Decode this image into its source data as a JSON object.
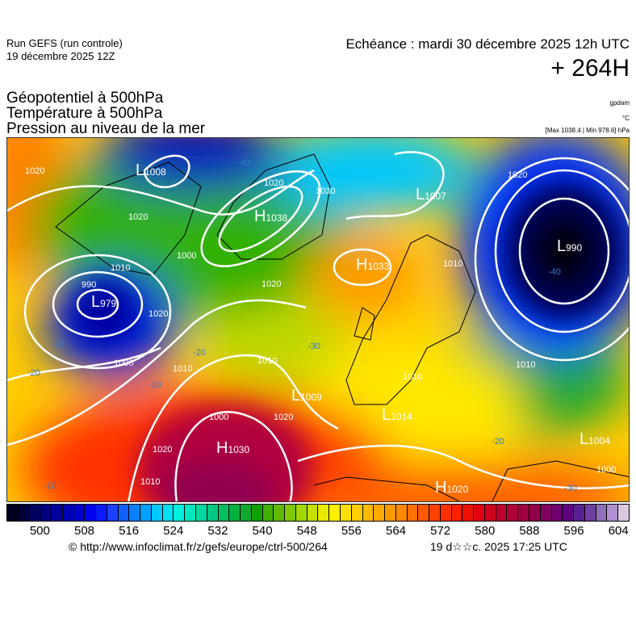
{
  "header": {
    "run": "Run GEFS (run controle)",
    "run_date": "19 décembre 2025 12Z",
    "valid_time": "Echéance : mardi 30 décembre 2025 12h UTC",
    "lead_time": "+ 264H"
  },
  "titles": {
    "line1": "Géopotentiel à 500hPa",
    "line2": "Température à 500hPa",
    "line3": "Pression au niveau de la mer",
    "unit1": "gpdam",
    "unit2": "°C",
    "unit3": "[Max 1038.4 | Min 978.6] hPa"
  },
  "pressure_centers": [
    {
      "type": "L",
      "value": "1008"
    },
    {
      "type": "H",
      "value": "1038"
    },
    {
      "type": "L",
      "value": "1007"
    },
    {
      "type": "H",
      "value": "1033"
    },
    {
      "type": "L",
      "value": "990"
    },
    {
      "type": "L",
      "value": "979"
    },
    {
      "type": "L",
      "value": "1009"
    },
    {
      "type": "L",
      "value": "1014"
    },
    {
      "type": "H",
      "value": "1030"
    },
    {
      "type": "L",
      "value": "1004"
    },
    {
      "type": "H",
      "value": "1020"
    }
  ],
  "isobar_labels": [
    "1020",
    "1020",
    "1010",
    "990",
    "1000",
    "1020",
    "1030",
    "1020",
    "1010",
    "1000",
    "1000",
    "1020",
    "1000",
    "1010",
    "1020",
    "1010",
    "1020",
    "1010",
    "1020",
    "1010",
    "1010"
  ],
  "isotherm_labels": [
    "-40",
    "-30",
    "-30",
    "-20",
    "-20",
    "-10",
    "-10",
    "-40",
    "-30",
    "-20"
  ],
  "colorbar": {
    "colors": [
      "#000020",
      "#00003c",
      "#000060",
      "#000080",
      "#00009c",
      "#0000b6",
      "#0000d0",
      "#0000ee",
      "#0a1aff",
      "#1a40ff",
      "#1060ff",
      "#0a80ff",
      "#00a0ff",
      "#00c8ff",
      "#00e0f0",
      "#00f0e0",
      "#00e8c0",
      "#00d8a0",
      "#00c880",
      "#00c060",
      "#00b040",
      "#10a830",
      "#10a000",
      "#40b000",
      "#60b800",
      "#80c800",
      "#a0d800",
      "#c8e000",
      "#e8e800",
      "#ffee00",
      "#ffdd00",
      "#ffcc00",
      "#ffbb00",
      "#ffaa00",
      "#ff9900",
      "#ff8800",
      "#ff7000",
      "#ff5800",
      "#ff4000",
      "#ff3000",
      "#ff2000",
      "#f01000",
      "#e00010",
      "#d00020",
      "#c00030",
      "#b00038",
      "#a00040",
      "#900048",
      "#800060",
      "#700070",
      "#600080",
      "#582090",
      "#7040a0",
      "#9070b8",
      "#b090d0",
      "#d8c8e0"
    ],
    "ticks": [
      "500",
      "508",
      "516",
      "524",
      "532",
      "540",
      "548",
      "556",
      "564",
      "572",
      "580",
      "588",
      "596",
      "604"
    ]
  },
  "footer": {
    "copyright": "© http://www.infoclimat.fr/z/gefs/europe/ctrl-500/264",
    "generated": "19 d☆☆c. 2025 17:25 UTC"
  }
}
